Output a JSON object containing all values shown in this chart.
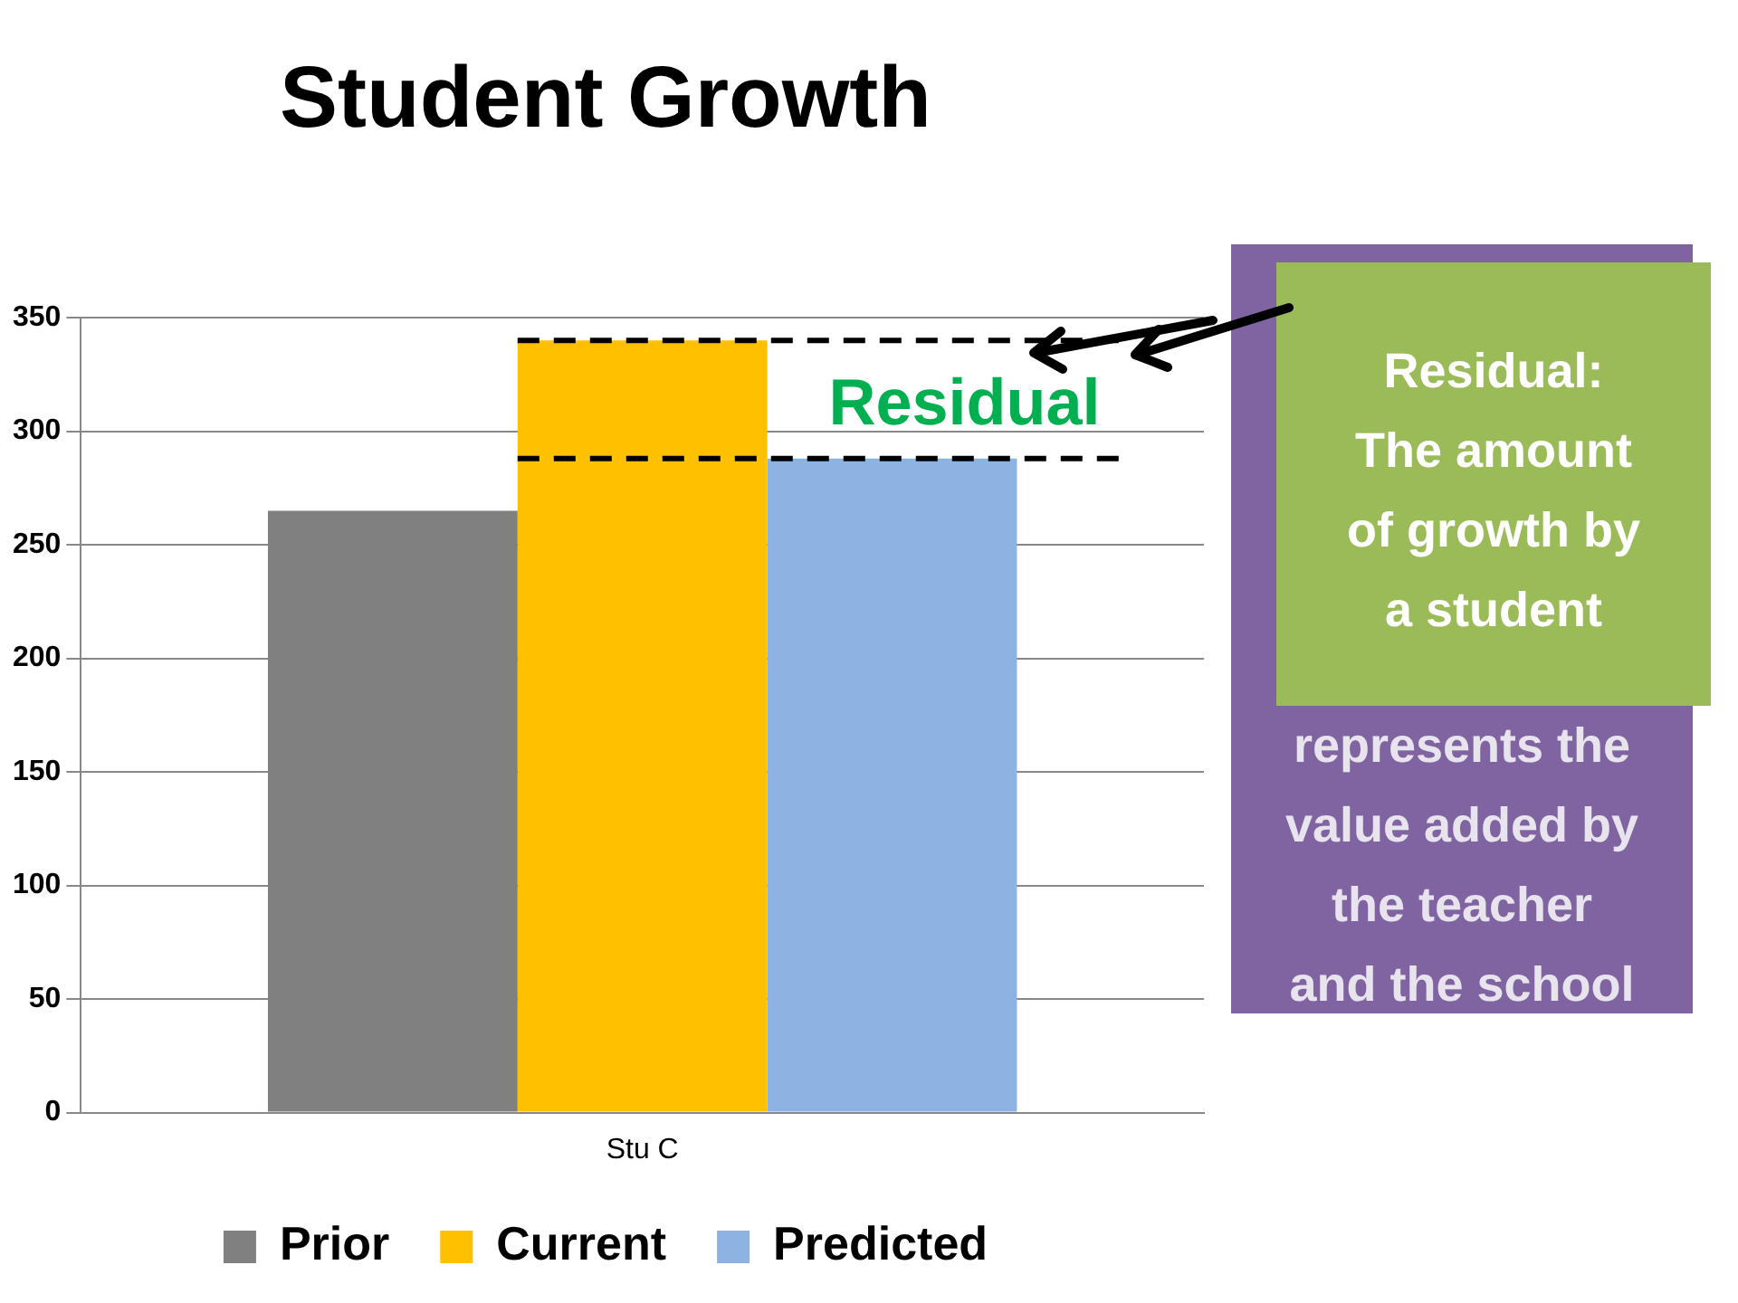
{
  "chart_data": {
    "type": "bar",
    "title": "Student Growth",
    "categories": [
      "Stu C"
    ],
    "series": [
      {
        "name": "Prior",
        "color": "#808080",
        "values": [
          265
        ]
      },
      {
        "name": "Current",
        "color": "#ffc000",
        "values": [
          340
        ]
      },
      {
        "name": "Predicted",
        "color": "#8db3e2",
        "values": [
          288
        ]
      }
    ],
    "ylim": [
      0,
      350
    ],
    "yticks": [
      0,
      50,
      100,
      150,
      200,
      250,
      300,
      350
    ],
    "grid": "y",
    "legend": "bottom",
    "ref_lines": [
      {
        "axis": "y",
        "value": 340,
        "color": "#000000",
        "line_style": "dashed"
      },
      {
        "axis": "y",
        "value": 288,
        "color": "#000000",
        "line_style": "dashed"
      }
    ],
    "annotations": [
      "Residual",
      "Residual:\nThe amount\nof growth by\na student",
      "represents the\nvalue added by\nthe teacher\nand the school"
    ]
  }
}
